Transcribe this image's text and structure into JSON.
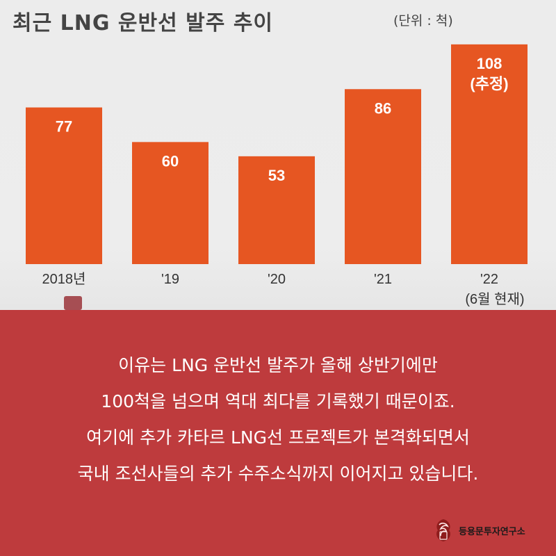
{
  "chart_data": {
    "type": "bar",
    "title": "최근 LNG 운반선 발주 추이",
    "unit_label": "(단위 : 척)",
    "categories": [
      "2018년",
      "'19",
      "'20",
      "'21",
      "'22"
    ],
    "category_notes": [
      "",
      "",
      "",
      "",
      "(6월 현재)"
    ],
    "values": [
      77,
      60,
      53,
      86,
      108
    ],
    "value_labels": [
      "77",
      "60",
      "53",
      "86",
      "108"
    ],
    "value_notes": [
      "",
      "",
      "",
      "",
      "(추정)"
    ],
    "ylim": [
      0,
      110
    ],
    "xlabel": "",
    "ylabel": "",
    "grid": false,
    "bar_color": "#e65622"
  },
  "message": {
    "lines": [
      "이유는 LNG 운반선 발주가 올해 상반기에만",
      "100척을 넘으며 역대 최다를 기록했기 때문이죠.",
      "여기에 추가 카타르 LNG선 프로젝트가 본격화되면서",
      "국내 조선사들의 추가 수주소식까지 이어지고 있습니다."
    ]
  },
  "brand": {
    "name": "등용문투자연구소",
    "logo_icon": "dragon-seal-icon"
  },
  "colors": {
    "panel": "#be3b3d",
    "chart_bg": "#ececec",
    "text": "#ffffff"
  }
}
